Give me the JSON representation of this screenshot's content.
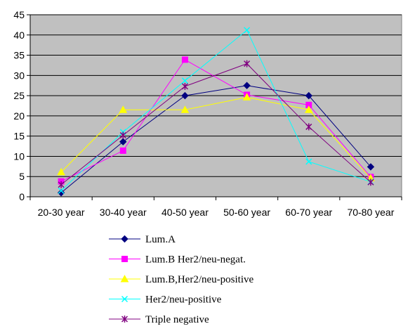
{
  "chart_data": {
    "type": "line",
    "title": "",
    "xlabel": "",
    "ylabel": "",
    "categories": [
      "20-30 year",
      "30-40 year",
      "40-50 year",
      "50-60 year",
      "60-70 year",
      "70-80 year"
    ],
    "ylim": [
      0,
      45
    ],
    "yticks": [
      0,
      5,
      10,
      15,
      20,
      25,
      30,
      35,
      40,
      45
    ],
    "grid": "horizontal",
    "plot_background": "#c0c0c0",
    "legend_position": "bottom",
    "series": [
      {
        "name": "Lum.A",
        "color": "#000080",
        "marker": "diamond",
        "values": [
          1.0,
          13.6,
          25.0,
          27.5,
          25.0,
          7.4
        ]
      },
      {
        "name": "Lum.B Her2/neu-negat.",
        "color": "#ff00ff",
        "marker": "square",
        "values": [
          3.8,
          11.4,
          33.9,
          25.2,
          22.7,
          4.9
        ]
      },
      {
        "name": "Lum.B,Her2/neu-positive",
        "color": "#ffff00",
        "marker": "triangle",
        "values": [
          6.1,
          21.5,
          21.5,
          24.6,
          21.5,
          4.6
        ]
      },
      {
        "name": "Her2/neu-positive",
        "color": "#00ffff",
        "marker": "x",
        "values": [
          1.5,
          16.0,
          28.7,
          41.2,
          8.7,
          3.7
        ]
      },
      {
        "name": "Triple negative",
        "color": "#800080",
        "marker": "star",
        "values": [
          3.0,
          15.2,
          27.3,
          32.9,
          17.3,
          3.6
        ]
      }
    ]
  }
}
